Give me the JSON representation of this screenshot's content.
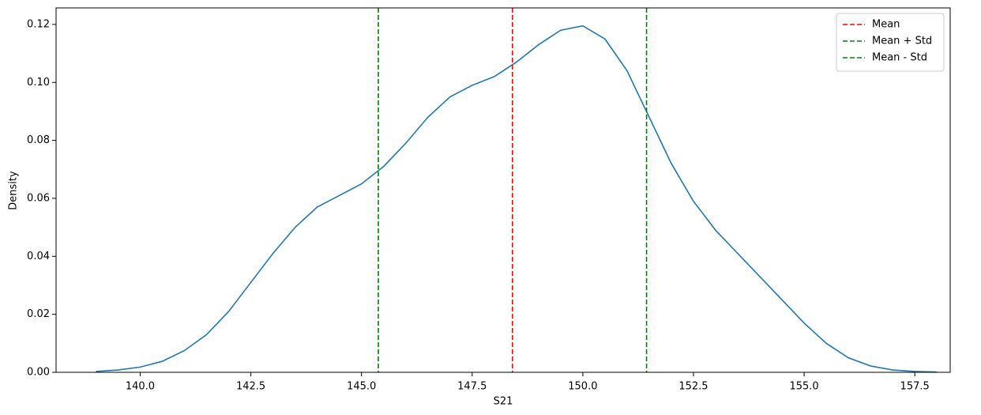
{
  "chart_data": {
    "type": "line",
    "x_label": "S21",
    "y_label": "Density",
    "x": [
      139.0,
      139.5,
      140.0,
      140.5,
      141.0,
      141.5,
      142.0,
      142.5,
      143.0,
      143.5,
      144.0,
      144.5,
      145.0,
      145.5,
      146.0,
      146.5,
      147.0,
      147.5,
      148.0,
      148.5,
      149.0,
      149.5,
      150.0,
      150.5,
      151.0,
      151.5,
      152.0,
      152.5,
      153.0,
      153.5,
      154.0,
      154.5,
      155.0,
      155.5,
      156.0,
      156.5,
      157.0,
      157.5,
      158.0
    ],
    "series": [
      {
        "color": "#1f77b4",
        "values": [
          0.0003,
          0.0008,
          0.0018,
          0.0038,
          0.0075,
          0.013,
          0.021,
          0.031,
          0.041,
          0.05,
          0.057,
          0.061,
          0.065,
          0.071,
          0.079,
          0.088,
          0.095,
          0.099,
          0.102,
          0.107,
          0.113,
          0.118,
          0.1195,
          0.115,
          0.104,
          0.088,
          0.072,
          0.059,
          0.049,
          0.041,
          0.033,
          0.025,
          0.017,
          0.01,
          0.005,
          0.0022,
          0.0008,
          0.0003,
          0.0001
        ]
      }
    ],
    "vlines": [
      {
        "name": "Mean",
        "value": 148.41,
        "color": "#ff0000"
      },
      {
        "name": "Mean + Std",
        "value": 151.44,
        "color": "#008000"
      },
      {
        "name": "Mean - Std",
        "value": 145.38,
        "color": "#008000"
      }
    ],
    "xlim": [
      138.1,
      158.3
    ],
    "ylim": [
      0,
      0.1257
    ],
    "xticks": [
      {
        "value": 140,
        "label": "140.0"
      },
      {
        "value": 142.5,
        "label": "142.5"
      },
      {
        "value": 145,
        "label": "145.0"
      },
      {
        "value": 147.5,
        "label": "147.5"
      },
      {
        "value": 150,
        "label": "150.0"
      },
      {
        "value": 152.5,
        "label": "152.5"
      },
      {
        "value": 155,
        "label": "155.0"
      },
      {
        "value": 157.5,
        "label": "157.5"
      }
    ],
    "yticks": [
      {
        "value": 0,
        "label": "0.00"
      },
      {
        "value": 0.02,
        "label": "0.02"
      },
      {
        "value": 0.04,
        "label": "0.04"
      },
      {
        "value": 0.06,
        "label": "0.06"
      },
      {
        "value": 0.08,
        "label": "0.08"
      },
      {
        "value": 0.1,
        "label": "0.10"
      },
      {
        "value": 0.12,
        "label": "0.12"
      }
    ],
    "legend_position": "upper right"
  }
}
